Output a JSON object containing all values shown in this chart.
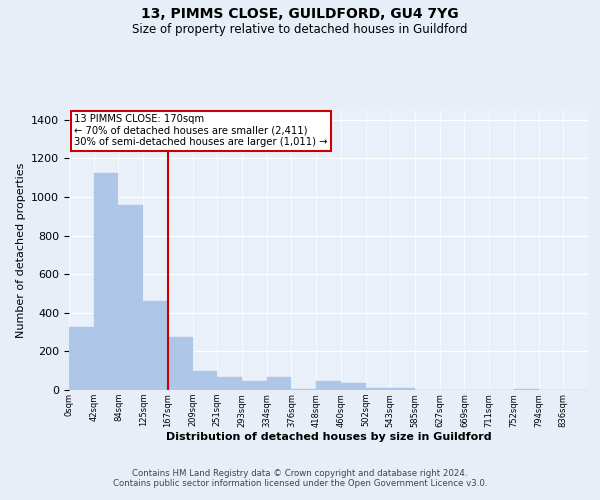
{
  "title1": "13, PIMMS CLOSE, GUILDFORD, GU4 7YG",
  "title2": "Size of property relative to detached houses in Guildford",
  "xlabel": "Distribution of detached houses by size in Guildford",
  "ylabel": "Number of detached properties",
  "bar_labels": [
    "0sqm",
    "42sqm",
    "84sqm",
    "125sqm",
    "167sqm",
    "209sqm",
    "251sqm",
    "293sqm",
    "334sqm",
    "376sqm",
    "418sqm",
    "460sqm",
    "502sqm",
    "543sqm",
    "585sqm",
    "627sqm",
    "669sqm",
    "711sqm",
    "752sqm",
    "794sqm",
    "836sqm"
  ],
  "bar_heights": [
    325,
    1125,
    960,
    460,
    275,
    100,
    65,
    45,
    65,
    5,
    45,
    35,
    10,
    10,
    0,
    0,
    0,
    0,
    5,
    0,
    0
  ],
  "bar_color": "#aec6e8",
  "bar_edge_color": "#aec6e8",
  "highlight_line_color": "#cc0000",
  "ylim": [
    0,
    1450
  ],
  "yticks": [
    0,
    200,
    400,
    600,
    800,
    1000,
    1200,
    1400
  ],
  "annotation_text": "13 PIMMS CLOSE: 170sqm\n← 70% of detached houses are smaller (2,411)\n30% of semi-detached houses are larger (1,011) →",
  "annotation_box_color": "#ffffff",
  "annotation_box_edge": "#cc0000",
  "footer_text": "Contains HM Land Registry data © Crown copyright and database right 2024.\nContains public sector information licensed under the Open Government Licence v3.0.",
  "bg_color": "#e8eef7",
  "plot_bg_color": "#eaf0f9",
  "grid_color": "#ffffff"
}
